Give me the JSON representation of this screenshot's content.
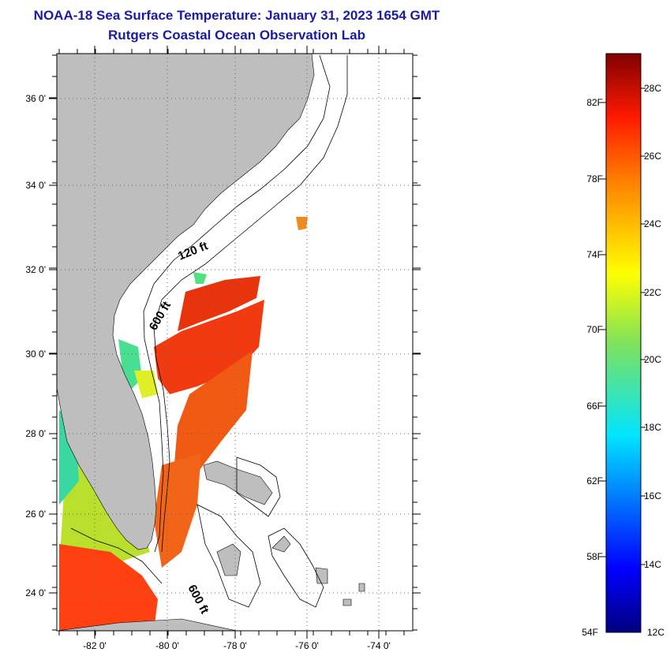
{
  "header": {
    "title": "NOAA-18 Sea Surface Temperature:  January 31, 2023 1654 GMT",
    "subtitle": "Rutgers Coastal Ocean Observation Lab"
  },
  "map": {
    "lon_ticks": [
      "-82 0'",
      "-80 0'",
      "-78 0'",
      "-76 0'",
      "-74 0'"
    ],
    "lat_ticks": [
      "36 0'",
      "34 0'",
      "32 0'",
      "30 0'",
      "28 0'",
      "26 0'",
      "24 0'"
    ],
    "contour_labels": {
      "c120": "120 ft",
      "c600a": "600 ft",
      "c600b": "600 ft"
    },
    "colors": {
      "land": "#bebebe",
      "ocean": "#ffffff",
      "frame": "#000000"
    }
  },
  "colorbar": {
    "fahrenheit_labels": [
      "82F",
      "78F",
      "74F",
      "70F",
      "66F",
      "62F",
      "58F",
      "54F"
    ],
    "celsius_labels": [
      "28C",
      "26C",
      "24C",
      "22C",
      "20C",
      "18C",
      "16C",
      "14C",
      "12C"
    ]
  }
}
